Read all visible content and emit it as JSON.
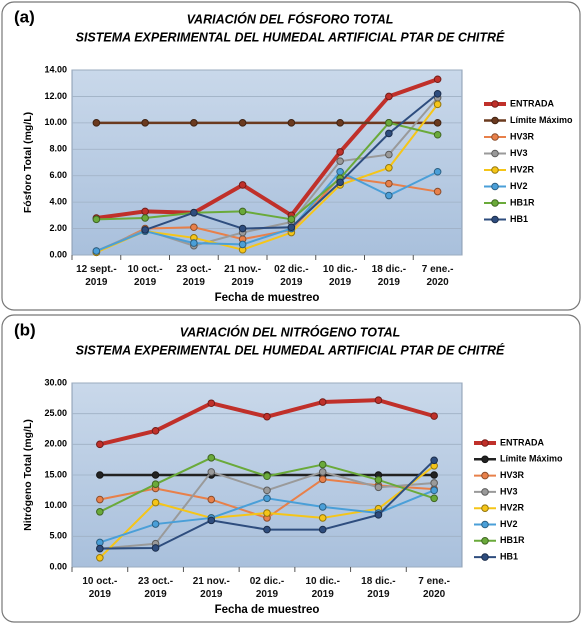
{
  "chart_data": [
    {
      "type": "line",
      "label": "(a)",
      "title": "VARIACIÓN DEL FÓSFORO TOTAL",
      "subtitle": "SISTEMA EXPERIMENTAL DEL HUMEDAL ARTIFICIAL PTAR DE CHITRÉ",
      "x_label": "Fecha de muestreo",
      "y_label": "Fósforo Total (mg/L)",
      "categories": [
        "12 sept.-\n2019",
        "10 oct.-\n2019",
        "23 oct.-\n2019",
        "21 nov.-\n2019",
        "02 dic.-\n2019",
        "10 dic.-\n2019",
        "18 dic.-\n2019",
        "7 ene.-\n2020"
      ],
      "ylim": [
        0,
        14
      ],
      "yticks": [
        {
          "value": 0,
          "label": "0.00"
        },
        {
          "value": 2,
          "label": "2.00"
        },
        {
          "value": 4,
          "label": "4.00"
        },
        {
          "value": 6,
          "label": "6.00"
        },
        {
          "value": 8,
          "label": "8.00"
        },
        {
          "value": 10,
          "label": "10.00"
        },
        {
          "value": 12,
          "label": "12.00"
        },
        {
          "value": 14,
          "label": "14.00"
        }
      ],
      "grid": true,
      "legend": "right",
      "series": [
        {
          "name": "ENTRADA",
          "color": "#c0302a",
          "width": 4,
          "values": [
            2.8,
            3.3,
            3.2,
            5.3,
            3.0,
            7.8,
            12.0,
            13.3
          ]
        },
        {
          "name": "Límite Máximo",
          "color": "#6b3a1f",
          "width": 2.5,
          "values": [
            10,
            10,
            10,
            10,
            10,
            10,
            10,
            10
          ]
        },
        {
          "name": "HV3R",
          "color": "#e8804a",
          "width": 2,
          "values": [
            0.2,
            2.0,
            2.1,
            1.2,
            1.9,
            5.9,
            5.4,
            4.8
          ]
        },
        {
          "name": "HV3",
          "color": "#9a9a9a",
          "width": 2,
          "values": [
            0.3,
            1.9,
            0.7,
            1.7,
            2.5,
            7.1,
            7.6,
            11.9
          ]
        },
        {
          "name": "HV2R",
          "color": "#f5c518",
          "width": 2,
          "values": [
            0.2,
            1.8,
            1.3,
            0.4,
            1.7,
            5.3,
            6.6,
            11.4
          ]
        },
        {
          "name": "HV2",
          "color": "#4a9fd8",
          "width": 2,
          "values": [
            0.3,
            1.8,
            0.9,
            0.8,
            2.0,
            6.3,
            4.5,
            6.3
          ]
        },
        {
          "name": "HB1R",
          "color": "#6aaa3a",
          "width": 2,
          "values": [
            2.7,
            2.8,
            3.2,
            3.3,
            2.7,
            5.8,
            10.0,
            9.1
          ]
        },
        {
          "name": "HB1",
          "color": "#2e4d7e",
          "width": 2,
          "values": [
            null,
            1.9,
            3.2,
            2.0,
            2.1,
            5.5,
            9.2,
            12.2
          ]
        }
      ]
    },
    {
      "type": "line",
      "label": "(b)",
      "title": "VARIACIÓN DEL NITRÓGENO TOTAL",
      "subtitle": "SISTEMA EXPERIMENTAL DEL HUMEDAL ARTIFICIAL PTAR DE CHITRÉ",
      "x_label": "Fecha de muestreo",
      "y_label": "Nitrógeno Total (mg/L)",
      "categories": [
        "10 oct.-\n2019",
        "23 oct.-\n2019",
        "21 nov.-\n2019",
        "02 dic.-\n2019",
        "10 dic.-\n2019",
        "18 dic.-\n2019",
        "7 ene.-\n2020"
      ],
      "ylim": [
        0,
        30
      ],
      "yticks": [
        {
          "value": 0,
          "label": "0.00"
        },
        {
          "value": 5,
          "label": "5.00"
        },
        {
          "value": 10,
          "label": "10.00"
        },
        {
          "value": 15,
          "label": "15.00"
        },
        {
          "value": 20,
          "label": "20.00"
        },
        {
          "value": 25,
          "label": "25.00"
        },
        {
          "value": 30,
          "label": "30.00"
        }
      ],
      "grid": true,
      "legend": "right",
      "series": [
        {
          "name": "ENTRADA",
          "color": "#c0302a",
          "width": 4,
          "values": [
            20.0,
            22.2,
            26.7,
            24.5,
            26.9,
            27.2,
            24.6
          ]
        },
        {
          "name": "Límite Máximo",
          "color": "#222222",
          "width": 2.5,
          "values": [
            15,
            15,
            15,
            15,
            15,
            15,
            15
          ]
        },
        {
          "name": "HV3R",
          "color": "#e8804a",
          "width": 2,
          "values": [
            11.0,
            12.8,
            11.0,
            8.0,
            14.3,
            13.3,
            12.7
          ]
        },
        {
          "name": "HV3",
          "color": "#9a9a9a",
          "width": 2,
          "values": [
            3.0,
            3.8,
            15.5,
            12.5,
            15.5,
            13.0,
            13.7
          ]
        },
        {
          "name": "HV2R",
          "color": "#f5c518",
          "width": 2,
          "values": [
            1.5,
            10.5,
            8.0,
            8.8,
            8.0,
            9.5,
            16.5
          ]
        },
        {
          "name": "HV2",
          "color": "#4a9fd8",
          "width": 2,
          "values": [
            4.0,
            7.0,
            8.0,
            11.2,
            9.8,
            8.8,
            12.5
          ]
        },
        {
          "name": "HB1R",
          "color": "#6aaa3a",
          "width": 2,
          "values": [
            9.0,
            13.5,
            17.8,
            14.8,
            16.7,
            14.2,
            11.2
          ]
        },
        {
          "name": "HB1",
          "color": "#2e4d7e",
          "width": 2,
          "values": [
            3.0,
            3.1,
            7.6,
            6.1,
            6.1,
            8.5,
            17.4
          ]
        }
      ]
    }
  ]
}
